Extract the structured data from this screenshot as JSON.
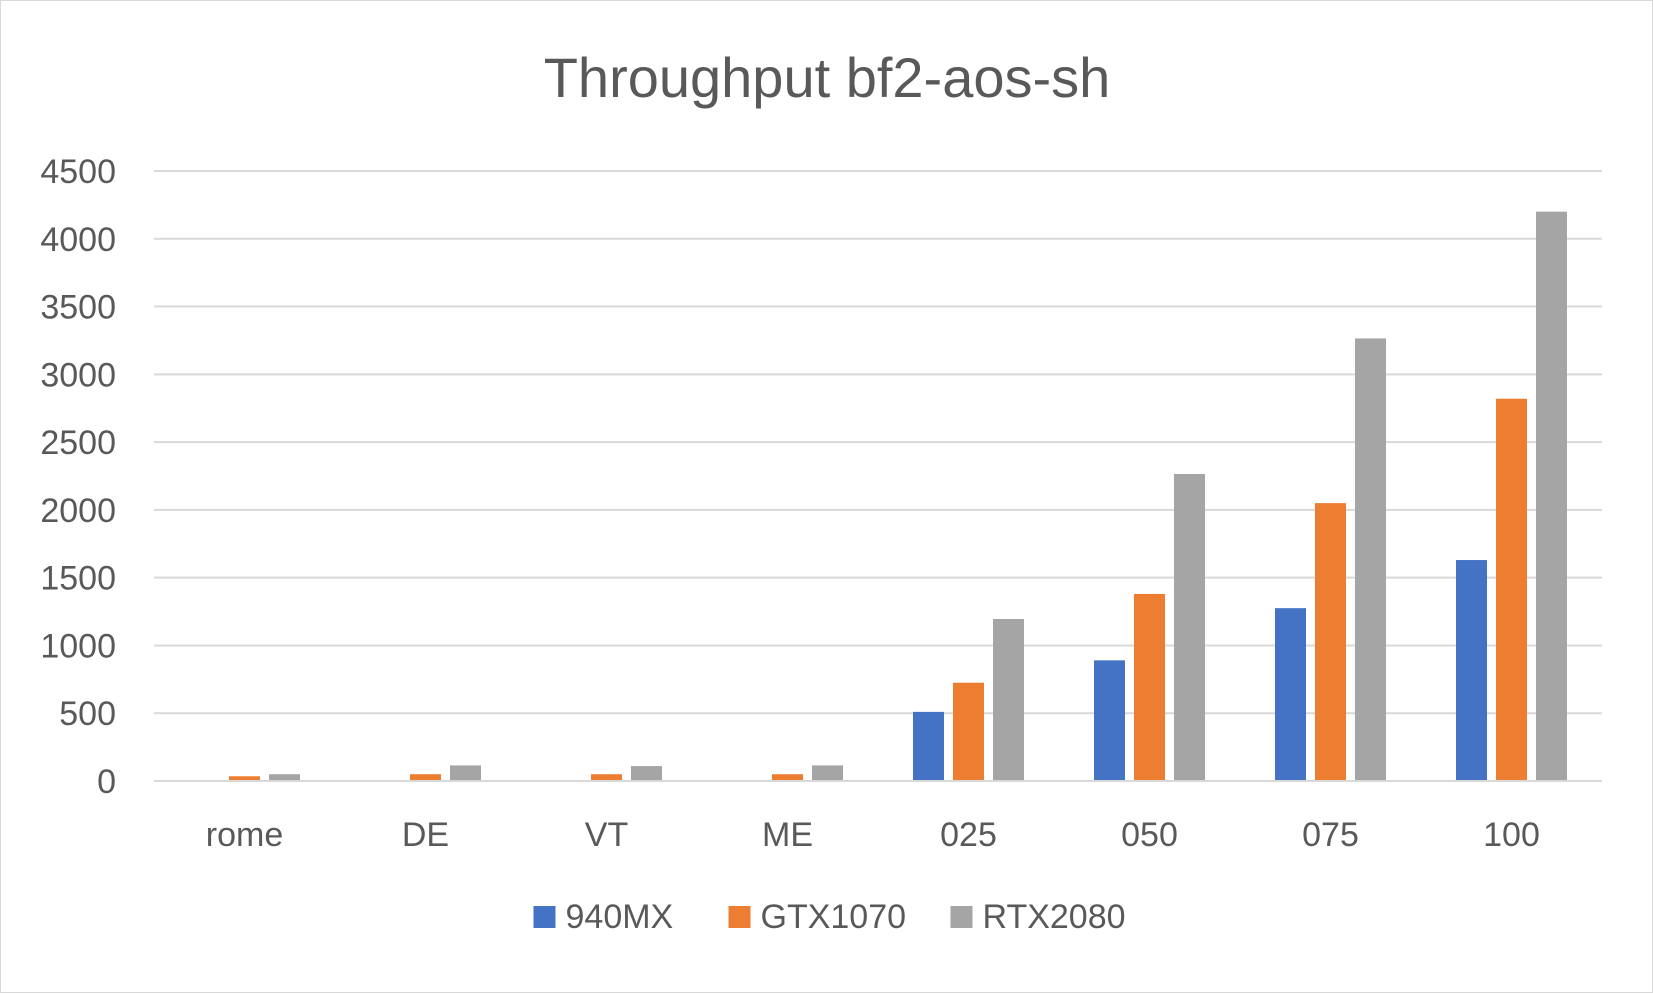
{
  "chart_data": {
    "type": "bar",
    "title": "Throughput bf2-aos-sh",
    "xlabel": "",
    "ylabel": "",
    "ylim": [
      0,
      4500
    ],
    "yticks": [
      0,
      500,
      1000,
      1500,
      2000,
      2500,
      3000,
      3500,
      4000,
      4500
    ],
    "grid": true,
    "legend_position": "bottom",
    "categories": [
      "rome",
      "DE",
      "VT",
      "ME",
      "025",
      "050",
      "075",
      "100"
    ],
    "series": [
      {
        "name": "940MX",
        "color": "#4472c4",
        "values": [
          0,
          0,
          0,
          0,
          510,
          890,
          1275,
          1630
        ]
      },
      {
        "name": "GTX1070",
        "color": "#ed7d31",
        "values": [
          35,
          50,
          50,
          50,
          725,
          1380,
          2050,
          2820
        ]
      },
      {
        "name": "RTX2080",
        "color": "#a5a5a5",
        "values": [
          50,
          115,
          110,
          115,
          1195,
          2265,
          3265,
          4200
        ]
      }
    ]
  }
}
